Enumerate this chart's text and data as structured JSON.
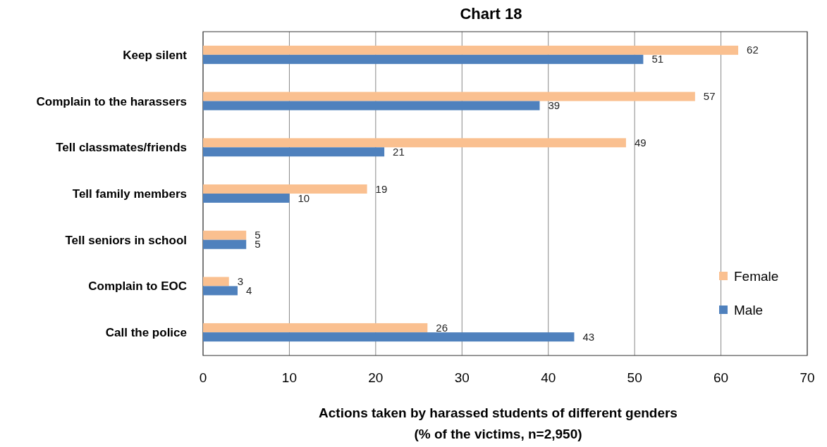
{
  "chart_data": {
    "type": "bar",
    "orientation": "horizontal",
    "title": "Chart 18",
    "xlabel": "Actions taken by harassed students of different genders\n(% of the victims, n=2,950)",
    "categories": [
      "Keep silent",
      "Complain to the harassers",
      "Tell classmates/friends",
      "Tell family members",
      "Tell seniors in school",
      "Complain to EOC",
      "Call the police"
    ],
    "series": [
      {
        "name": "Female",
        "color": "#fac090",
        "values": [
          62,
          57,
          49,
          19,
          5,
          3,
          26
        ]
      },
      {
        "name": "Male",
        "color": "#4f81bd",
        "values": [
          51,
          39,
          21,
          10,
          5,
          4,
          43
        ]
      }
    ],
    "xlim": [
      0,
      70
    ],
    "xticks": [
      0,
      10,
      20,
      30,
      40,
      50,
      60,
      70
    ],
    "grid": "x",
    "legend": "right",
    "data_labels": true
  }
}
